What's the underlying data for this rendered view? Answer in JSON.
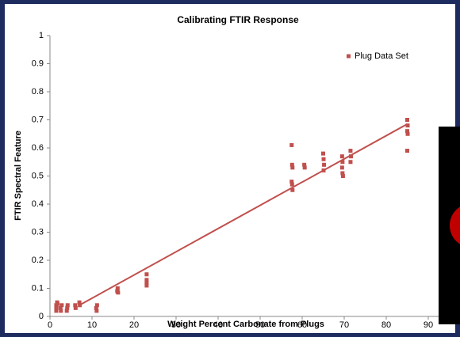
{
  "chart_data": {
    "type": "scatter",
    "title": "Calibrating FTIR Response",
    "x_label": "Weight Percent Carbonate  from Plugs",
    "y_label": "FTIR Spectral Feature",
    "xlim": [
      0,
      100
    ],
    "xticks": [
      0,
      10,
      20,
      30,
      40,
      50,
      60,
      70,
      80,
      90
    ],
    "ylim": [
      0,
      1
    ],
    "yticks": [
      0,
      0.1,
      0.2,
      0.3,
      0.4,
      0.5,
      0.6,
      0.7,
      0.8,
      0.9,
      1
    ],
    "legend": "top-right",
    "series": [
      {
        "name": "Plug Data Set",
        "color": "#c0504d",
        "x": [
          1.5,
          1.5,
          1.5,
          1.7,
          1.8,
          2.5,
          2.6,
          2.8,
          4,
          4.1,
          4.2,
          6,
          6.1,
          7,
          7.1,
          11,
          11.1,
          11.2,
          16,
          16.1,
          16.2,
          23,
          23,
          23,
          23,
          57.5,
          57.6,
          57.7,
          57.5,
          57.6,
          57.7,
          60.5,
          60.6,
          65,
          65.1,
          65.2,
          65.1,
          69.5,
          69.6,
          69.5,
          69.6,
          69.7,
          71.5,
          71.6,
          71.5,
          85,
          85.1,
          85,
          85.1,
          85
        ],
        "values": [
          0.04,
          0.03,
          0.02,
          0.05,
          0.045,
          0.03,
          0.02,
          0.04,
          0.02,
          0.03,
          0.04,
          0.04,
          0.03,
          0.05,
          0.04,
          0.03,
          0.02,
          0.04,
          0.09,
          0.1,
          0.085,
          0.15,
          0.13,
          0.11,
          0.12,
          0.61,
          0.54,
          0.53,
          0.48,
          0.47,
          0.45,
          0.54,
          0.53,
          0.58,
          0.56,
          0.54,
          0.52,
          0.57,
          0.55,
          0.53,
          0.51,
          0.5,
          0.59,
          0.57,
          0.55,
          0.7,
          0.68,
          0.66,
          0.65,
          0.59
        ]
      }
    ],
    "trendline": {
      "color": "#c0504d",
      "x": [
        7,
        85
      ],
      "values": [
        0.04,
        0.685
      ]
    }
  }
}
